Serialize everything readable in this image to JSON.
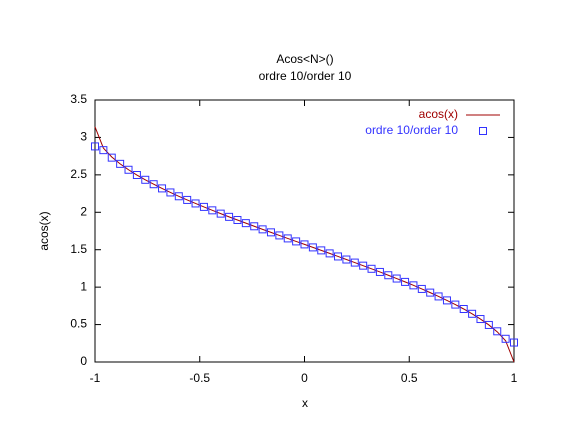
{
  "chart_data": {
    "type": "line",
    "title": "Acos<N>()",
    "subtitle": "ordre 10/order 10",
    "x_label": "x",
    "y_label": "acos(x)",
    "x": [
      -1,
      -0.96,
      -0.92,
      -0.88,
      -0.84,
      -0.8,
      -0.76,
      -0.72,
      -0.68,
      -0.64,
      -0.6,
      -0.56,
      -0.52,
      -0.48,
      -0.44,
      -0.4,
      -0.36,
      -0.32,
      -0.28,
      -0.24,
      -0.2,
      -0.16,
      -0.12,
      -0.08,
      -0.04,
      0,
      0.04,
      0.08,
      0.12,
      0.16,
      0.2,
      0.24,
      0.28,
      0.32,
      0.36,
      0.4,
      0.44,
      0.48,
      0.52,
      0.56,
      0.6,
      0.64,
      0.68,
      0.72,
      0.76,
      0.8,
      0.84,
      0.88,
      0.92,
      0.96,
      1
    ],
    "series": [
      {
        "name": "acos(x)",
        "color": "#a00000",
        "style": "line",
        "values": [
          3.142,
          2.858,
          2.739,
          2.647,
          2.568,
          2.498,
          2.434,
          2.375,
          2.319,
          2.265,
          2.214,
          2.165,
          2.118,
          2.072,
          2.026,
          1.982,
          1.939,
          1.897,
          1.855,
          1.813,
          1.772,
          1.732,
          1.691,
          1.651,
          1.611,
          1.571,
          1.531,
          1.491,
          1.451,
          1.41,
          1.369,
          1.328,
          1.287,
          1.245,
          1.203,
          1.159,
          1.115,
          1.07,
          1.024,
          0.976,
          0.927,
          0.876,
          0.823,
          0.767,
          0.708,
          0.644,
          0.574,
          0.495,
          0.403,
          0.284,
          0
        ]
      },
      {
        "name": "ordre 10/order 10",
        "color": "#3333ff",
        "style": "points",
        "values": [
          2.88,
          2.83,
          2.73,
          2.647,
          2.568,
          2.498,
          2.434,
          2.375,
          2.319,
          2.265,
          2.214,
          2.165,
          2.118,
          2.072,
          2.026,
          1.982,
          1.939,
          1.897,
          1.855,
          1.813,
          1.772,
          1.732,
          1.691,
          1.651,
          1.611,
          1.571,
          1.531,
          1.491,
          1.451,
          1.41,
          1.369,
          1.328,
          1.287,
          1.245,
          1.203,
          1.159,
          1.115,
          1.07,
          1.024,
          0.976,
          0.927,
          0.876,
          0.823,
          0.767,
          0.708,
          0.644,
          0.574,
          0.495,
          0.41,
          0.31,
          0.26
        ]
      }
    ],
    "xlim": [
      -1,
      1
    ],
    "xticks": [
      -1,
      -0.5,
      0,
      0.5,
      1
    ],
    "ylim": [
      0,
      3.5
    ],
    "yticks": [
      0,
      0.5,
      1,
      1.5,
      2,
      2.5,
      3,
      3.5
    ],
    "grid": false,
    "legend": "top-right"
  }
}
